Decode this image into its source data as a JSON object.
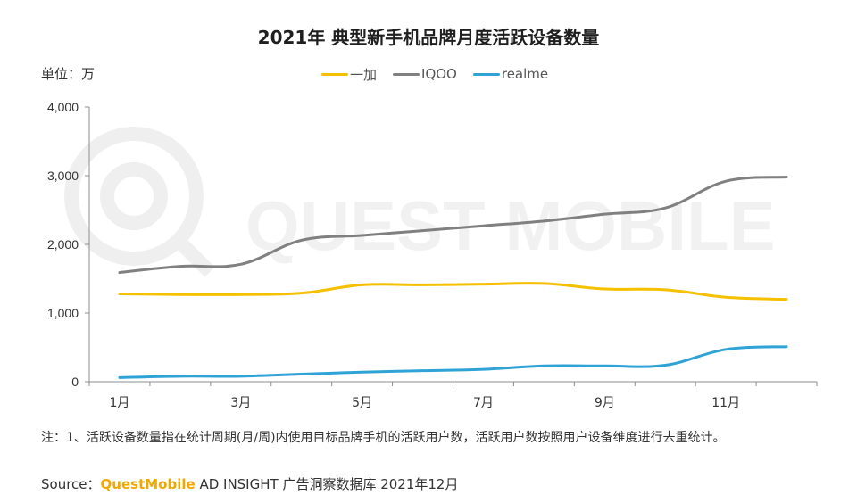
{
  "title": "2021年 典型新手机品牌月度活跃设备数量",
  "unit_label": "单位：万",
  "legend": [
    {
      "name": "一加",
      "color": "#f5c000"
    },
    {
      "name": "IQOO",
      "color": "#808080"
    },
    {
      "name": "realme",
      "color": "#2fa3d6"
    }
  ],
  "watermark_text": "QUEST MOBILE",
  "note": "注：1、活跃设备数量指在统计周期(月/周)内使用目标品牌手机的活跃用户数，活跃用户数按照用户设备维度进行去重统计。",
  "source": {
    "prefix": "Source：",
    "brand": "QuestMobile",
    "suffix": " AD INSIGHT 广告洞察数据库 2021年12月"
  },
  "chart_data": {
    "type": "line",
    "title": "2021年 典型新手机品牌月度活跃设备数量",
    "ylabel": "单位：万",
    "xlabel": "",
    "ylim": [
      0,
      4000
    ],
    "yticks": [
      "0",
      "1,000",
      "2,000",
      "3,000",
      "4,000"
    ],
    "yticks_values": [
      0,
      1000,
      2000,
      3000,
      4000
    ],
    "x": [
      1,
      2,
      3,
      4,
      5,
      6,
      7,
      8,
      9,
      10,
      11,
      12
    ],
    "xtick_labels": [
      "1月",
      "",
      "3月",
      "",
      "5月",
      "",
      "7月",
      "",
      "9月",
      "",
      "11月",
      ""
    ],
    "grid": false,
    "legend_position": "top-center",
    "series": [
      {
        "name": "一加",
        "color": "#f5c000",
        "values": [
          1280,
          1270,
          1270,
          1290,
          1410,
          1410,
          1420,
          1430,
          1350,
          1340,
          1230,
          1200
        ]
      },
      {
        "name": "IQOO",
        "color": "#808080",
        "values": [
          1590,
          1680,
          1710,
          2060,
          2130,
          2200,
          2270,
          2340,
          2440,
          2530,
          2920,
          2980
        ]
      },
      {
        "name": "realme",
        "color": "#2fa3d6",
        "values": [
          60,
          80,
          80,
          110,
          140,
          160,
          180,
          230,
          230,
          240,
          470,
          510
        ]
      }
    ]
  }
}
